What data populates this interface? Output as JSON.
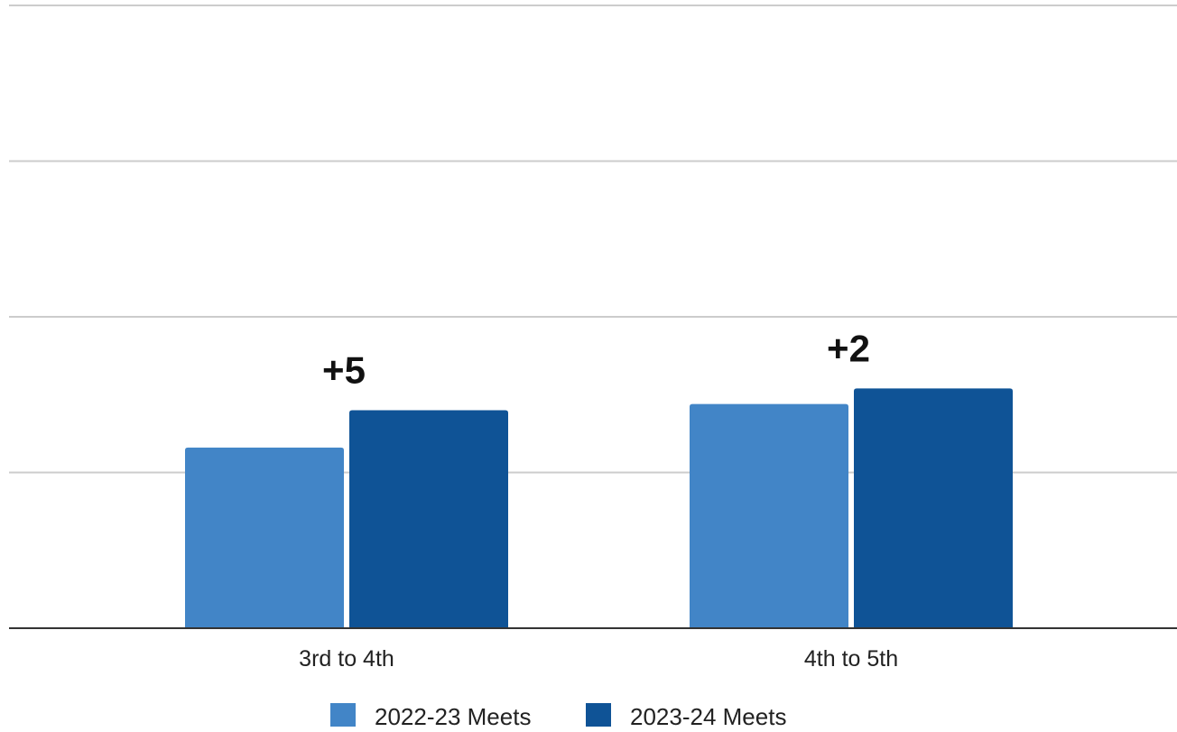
{
  "chart_data": {
    "type": "bar",
    "title": "",
    "xlabel": "",
    "ylabel": "",
    "categories": [
      "3rd to 4th",
      "4th to 5th"
    ],
    "series": [
      {
        "name": "2022-23 Meets",
        "color": "#4285c7",
        "values": [
          29,
          36
        ]
      },
      {
        "name": "2023-24 Meets",
        "color": "#0f5396",
        "values": [
          35,
          38.5
        ]
      }
    ],
    "annotations": [
      "+5",
      "+2"
    ],
    "ylim": [
      0,
      100
    ],
    "gridlines": [
      0,
      25,
      50,
      75,
      100
    ],
    "grid": true,
    "show_y_tick_labels": false,
    "legend": {
      "position": "bottom"
    }
  }
}
